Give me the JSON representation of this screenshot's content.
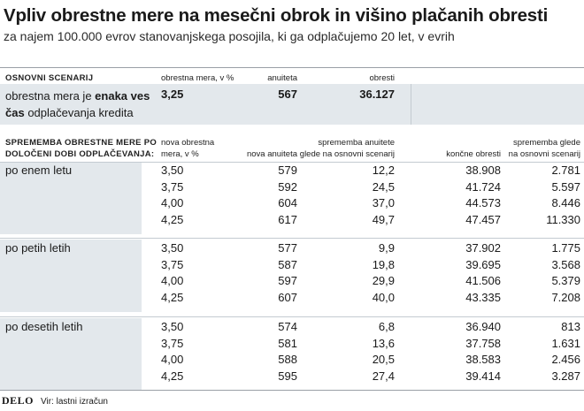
{
  "title": "Vpliv obrestne mere na mesečni obrok in višino plačanih obresti",
  "subtitle": "za najem 100.000 evrov stanovanjskega posojila, ki ga odplačujemo 20 let, v evrih",
  "base": {
    "section_label": "OSNOVNI SCENARIJ",
    "col_rate": "obrestna mera, v %",
    "col_annuity": "anuiteta",
    "col_interest": "obresti",
    "row_label_pre": "obrestna mera je ",
    "row_label_bold": "enaka ves čas",
    "row_label_post": " odplačevanja kredita",
    "rate": "3,25",
    "annuity": "567",
    "interest": "36.127"
  },
  "change": {
    "section_label_1": "SPREMEMBA OBRESTNE MERE PO",
    "section_label_2": "DOLOČENI DOBI ODPLAČEVANJA:",
    "col_new_rate_1": "nova obrestna",
    "col_new_rate_2": "mera, v %",
    "col_new_annuity": "nova anuiteta",
    "col_annuity_change_1": "sprememba anuitete",
    "col_annuity_change_2": "glede na osnovni scenarij",
    "col_final_interest": "končne obresti",
    "col_interest_change_1": "sprememba glede",
    "col_interest_change_2": "na osnovni scenarij",
    "groups": [
      {
        "label": "po enem letu",
        "rows": [
          {
            "rate": "3,50",
            "annuity": "579",
            "annuity_change": "12,2",
            "final_interest": "38.908",
            "interest_change": "2.781"
          },
          {
            "rate": "3,75",
            "annuity": "592",
            "annuity_change": "24,5",
            "final_interest": "41.724",
            "interest_change": "5.597"
          },
          {
            "rate": "4,00",
            "annuity": "604",
            "annuity_change": "37,0",
            "final_interest": "44.573",
            "interest_change": "8.446"
          },
          {
            "rate": "4,25",
            "annuity": "617",
            "annuity_change": "49,7",
            "final_interest": "47.457",
            "interest_change": "11.330"
          }
        ]
      },
      {
        "label": "po petih letih",
        "rows": [
          {
            "rate": "3,50",
            "annuity": "577",
            "annuity_change": "9,9",
            "final_interest": "37.902",
            "interest_change": "1.775"
          },
          {
            "rate": "3,75",
            "annuity": "587",
            "annuity_change": "19,8",
            "final_interest": "39.695",
            "interest_change": "3.568"
          },
          {
            "rate": "4,00",
            "annuity": "597",
            "annuity_change": "29,9",
            "final_interest": "41.506",
            "interest_change": "5.379"
          },
          {
            "rate": "4,25",
            "annuity": "607",
            "annuity_change": "40,0",
            "final_interest": "43.335",
            "interest_change": "7.208"
          }
        ]
      },
      {
        "label": "po desetih letih",
        "rows": [
          {
            "rate": "3,50",
            "annuity": "574",
            "annuity_change": "6,8",
            "final_interest": "36.940",
            "interest_change": "813"
          },
          {
            "rate": "3,75",
            "annuity": "581",
            "annuity_change": "13,6",
            "final_interest": "37.758",
            "interest_change": "1.631"
          },
          {
            "rate": "4,00",
            "annuity": "588",
            "annuity_change": "20,5",
            "final_interest": "38.583",
            "interest_change": "2.456"
          },
          {
            "rate": "4,25",
            "annuity": "595",
            "annuity_change": "27,4",
            "final_interest": "39.414",
            "interest_change": "3.287"
          }
        ]
      }
    ]
  },
  "footer": {
    "logo": "DELO",
    "source": "Vir: lastni izračun"
  }
}
